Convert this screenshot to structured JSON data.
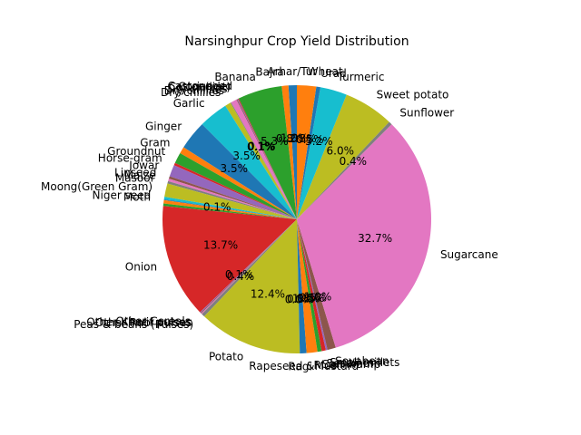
{
  "chart_data": {
    "type": "pie",
    "title": "Narsinghpur Crop Yield Distribution",
    "start_angle_deg": 90,
    "direction": "counterclockwise",
    "slices": [
      {
        "label": "Arhar/Tur",
        "value": 1.0,
        "pct": "1.0%",
        "color": "#1f77b4"
      },
      {
        "label": "Bajra",
        "value": 0.8,
        "pct": "0.8%",
        "color": "#ff7f0e"
      },
      {
        "label": "Banana",
        "value": 5.3,
        "pct": "5.3%",
        "color": "#2ca02c"
      },
      {
        "label": "Castor seed",
        "value": 0.1,
        "pct": "0.1%",
        "color": "#d62728"
      },
      {
        "label": "Coriander",
        "value": 0.1,
        "pct": "0.1%",
        "color": "#9467bd"
      },
      {
        "label": "Cotton(lint)",
        "value": 0.1,
        "pct": "0.1%",
        "color": "#8c564b"
      },
      {
        "label": "Dry chillies",
        "value": 0.7,
        "pct": "",
        "color": "#e377c2"
      },
      {
        "label": "Dry chillies",
        "value": 0.1,
        "pct": "",
        "color": "#7f7f7f"
      },
      {
        "label": "Dry chillies",
        "value": 0.7,
        "pct": "",
        "color": "#bcbd22"
      },
      {
        "label": "Garlic",
        "value": 3.5,
        "pct": "3.5%",
        "color": "#17becf"
      },
      {
        "label": "Ginger",
        "value": 3.5,
        "pct": "3.5%",
        "color": "#1f77b4"
      },
      {
        "label": "Gram",
        "value": 0.8,
        "pct": "",
        "color": "#ff7f0e"
      },
      {
        "label": "Groundnut",
        "value": 1.3,
        "pct": "",
        "color": "#2ca02c"
      },
      {
        "label": "Horse-gram",
        "value": 0.3,
        "pct": "",
        "color": "#d62728"
      },
      {
        "label": "Jowar",
        "value": 1.4,
        "pct": "",
        "color": "#9467bd"
      },
      {
        "label": "Linseed",
        "value": 0.3,
        "pct": "",
        "color": "#8c564b"
      },
      {
        "label": "Maize",
        "value": 0.3,
        "pct": "",
        "color": "#e377c2"
      },
      {
        "label": "Masoor",
        "value": 0.3,
        "pct": "",
        "color": "#7f7f7f"
      },
      {
        "label": "Moong(Green Gram)",
        "value": 1.6,
        "pct": "",
        "color": "#bcbd22"
      },
      {
        "label": "Niger seed",
        "value": 0.3,
        "pct": "",
        "color": "#17becf"
      },
      {
        "label": "Moth",
        "value": 0.1,
        "pct": "0.1%",
        "color": "#1f77b4"
      },
      {
        "label": "",
        "value": 0.4,
        "pct": "",
        "color": "#ff7f0e"
      },
      {
        "label": "",
        "value": 0.3,
        "pct": "",
        "color": "#2ca02c"
      },
      {
        "label": "Onion",
        "value": 13.7,
        "pct": "13.7%",
        "color": "#d62728"
      },
      {
        "label": "Other Cereals",
        "value": 0.1,
        "pct": "0.1%",
        "color": "#9467bd"
      },
      {
        "label": "Other Kharif pulses",
        "value": 0.1,
        "pct": "",
        "color": "#8c564b"
      },
      {
        "label": "Other Rabi pulses",
        "value": 0.1,
        "pct": "",
        "color": "#e377c2"
      },
      {
        "label": "Peas & beans (Pulses)",
        "value": 0.4,
        "pct": "0.4%",
        "color": "#7f7f7f"
      },
      {
        "label": "Potato",
        "value": 12.4,
        "pct": "12.4%",
        "color": "#bcbd22"
      },
      {
        "label": "Ragi",
        "value": 0.0,
        "pct": "0.0%",
        "color": "#17becf"
      },
      {
        "label": "Rapeseed &Mustard",
        "value": 0.8,
        "pct": "0.8%",
        "color": "#1f77b4"
      },
      {
        "label": "Rice",
        "value": 1.3,
        "pct": "1.3%",
        "color": "#ff7f0e"
      },
      {
        "label": "Sannhamp",
        "value": 0.5,
        "pct": "0.5%",
        "color": "#2ca02c"
      },
      {
        "label": "Sesamum",
        "value": 0.5,
        "pct": "0.5%",
        "color": "#d62728"
      },
      {
        "label": "Small millets",
        "value": 0.2,
        "pct": "",
        "color": "#9467bd"
      },
      {
        "label": "Soyabean",
        "value": 1.0,
        "pct": "1.0%",
        "color": "#8c564b"
      },
      {
        "label": "Sugarcane",
        "value": 32.7,
        "pct": "32.7%",
        "color": "#e377c2"
      },
      {
        "label": "Sunflower",
        "value": 0.4,
        "pct": "0.4%",
        "color": "#7f7f7f"
      },
      {
        "label": "Sweet potato",
        "value": 6.0,
        "pct": "6.0%",
        "color": "#bcbd22"
      },
      {
        "label": "Turmeric",
        "value": 3.2,
        "pct": "3.2%",
        "color": "#17becf"
      },
      {
        "label": "Urad",
        "value": 0.5,
        "pct": "0.5%",
        "color": "#1f77b4"
      },
      {
        "label": "Wheat",
        "value": 2.3,
        "pct": "2.3%",
        "color": "#ff7f0e"
      }
    ]
  }
}
